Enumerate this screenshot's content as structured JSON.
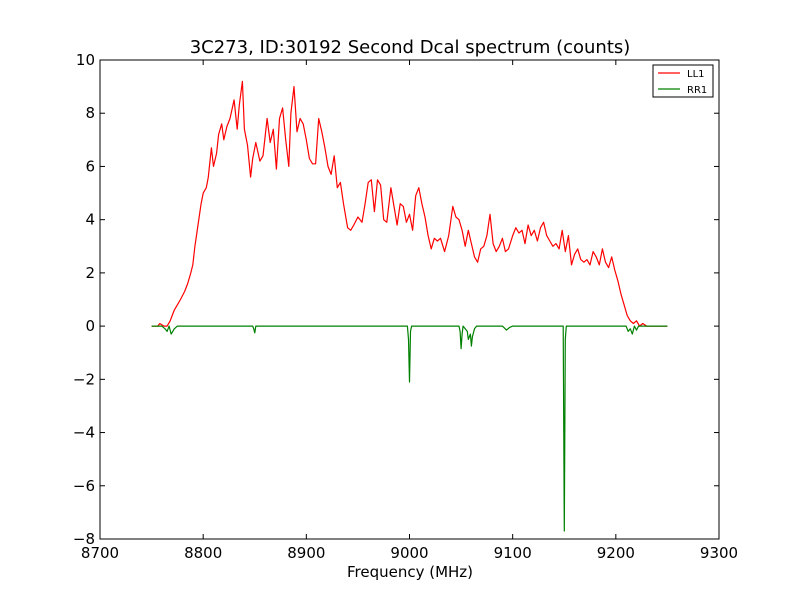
{
  "chart_data": {
    "type": "line",
    "title": "3C273, ID:30192 Second Dcal spectrum (counts)",
    "xlabel": "Frequency (MHz)",
    "ylabel": "",
    "xlim": [
      8700,
      9300
    ],
    "ylim": [
      -8,
      10
    ],
    "xticks": [
      8700,
      8800,
      8900,
      9000,
      9100,
      9200,
      9300
    ],
    "yticks": [
      -8,
      -6,
      -4,
      -2,
      0,
      2,
      4,
      6,
      8,
      10
    ],
    "xtick_labels": [
      "8700",
      "8800",
      "8900",
      "9000",
      "9100",
      "9200",
      "9300"
    ],
    "ytick_labels": [
      "−8",
      "−6",
      "−4",
      "−2",
      "0",
      "2",
      "4",
      "6",
      "8",
      "10"
    ],
    "grid": false,
    "legend_position": "top-right",
    "series": [
      {
        "name": "LL1",
        "color": "#ff0000",
        "x": [
          8750,
          8756,
          8758,
          8762,
          8765,
          8768,
          8770,
          8772,
          8775,
          8778,
          8782,
          8785,
          8788,
          8790,
          8792,
          8795,
          8798,
          8800,
          8803,
          8805,
          8808,
          8810,
          8813,
          8815,
          8818,
          8820,
          8823,
          8826,
          8830,
          8833,
          8835,
          8838,
          8840,
          8843,
          8846,
          8848,
          8851,
          8855,
          8858,
          8862,
          8865,
          8868,
          8871,
          8874,
          8877,
          8880,
          8883,
          8885,
          8888,
          8891,
          8894,
          8897,
          8900,
          8903,
          8906,
          8909,
          8912,
          8915,
          8918,
          8921,
          8924,
          8927,
          8930,
          8933,
          8936,
          8940,
          8943,
          8946,
          8950,
          8954,
          8957,
          8960,
          8963,
          8966,
          8969,
          8972,
          8975,
          8978,
          8982,
          8985,
          8988,
          8991,
          8994,
          8997,
          9000,
          9003,
          9006,
          9009,
          9012,
          9015,
          9018,
          9021,
          9024,
          9027,
          9030,
          9034,
          9038,
          9042,
          9045,
          9048,
          9051,
          9054,
          9057,
          9060,
          9063,
          9066,
          9069,
          9072,
          9075,
          9078,
          9081,
          9084,
          9087,
          9090,
          9093,
          9096,
          9100,
          9103,
          9106,
          9109,
          9112,
          9115,
          9118,
          9121,
          9124,
          9127,
          9130,
          9133,
          9136,
          9139,
          9142,
          9145,
          9148,
          9151,
          9154,
          9157,
          9160,
          9163,
          9166,
          9169,
          9172,
          9175,
          9178,
          9181,
          9184,
          9187,
          9190,
          9193,
          9196,
          9199,
          9202,
          9205,
          9208,
          9211,
          9214,
          9217,
          9220,
          9223,
          9226,
          9230,
          9240,
          9250
        ],
        "y": [
          0.0,
          0.0,
          0.1,
          0.0,
          0.0,
          0.2,
          0.4,
          0.6,
          0.8,
          1.0,
          1.3,
          1.6,
          2.0,
          2.3,
          3.0,
          3.8,
          4.6,
          5.0,
          5.2,
          5.6,
          6.7,
          6.0,
          6.5,
          7.2,
          7.6,
          7.0,
          7.5,
          7.8,
          8.5,
          7.4,
          8.3,
          9.2,
          7.4,
          6.8,
          5.6,
          6.3,
          6.9,
          6.2,
          6.4,
          7.8,
          6.9,
          7.4,
          5.9,
          7.8,
          8.2,
          7.0,
          6.0,
          8.0,
          9.0,
          7.3,
          7.8,
          7.6,
          7.0,
          6.3,
          6.1,
          6.1,
          7.8,
          7.3,
          6.7,
          6.0,
          5.7,
          6.4,
          5.2,
          5.4,
          4.6,
          3.7,
          3.6,
          3.8,
          4.1,
          3.9,
          4.6,
          5.4,
          5.5,
          4.3,
          5.5,
          5.3,
          4.0,
          3.9,
          5.2,
          4.5,
          3.8,
          4.6,
          4.5,
          3.9,
          4.2,
          3.6,
          4.9,
          5.2,
          4.6,
          4.1,
          3.4,
          2.9,
          3.3,
          3.2,
          3.3,
          2.8,
          3.4,
          4.5,
          4.1,
          4.0,
          3.6,
          3.0,
          3.6,
          3.1,
          2.6,
          2.4,
          2.9,
          3.0,
          3.4,
          4.2,
          3.1,
          2.8,
          3.0,
          3.3,
          2.8,
          2.9,
          3.4,
          3.7,
          3.5,
          3.6,
          3.1,
          3.8,
          3.4,
          3.6,
          3.2,
          3.7,
          3.9,
          3.4,
          3.2,
          3.0,
          3.1,
          2.9,
          3.6,
          2.8,
          3.4,
          2.3,
          2.7,
          2.9,
          2.5,
          2.4,
          2.5,
          2.3,
          2.8,
          2.6,
          2.3,
          2.9,
          2.4,
          2.2,
          2.6,
          2.1,
          1.7,
          1.2,
          0.8,
          0.4,
          0.2,
          0.1,
          0.2,
          0.0,
          0.1,
          0.0,
          0.0,
          0.0
        ]
      },
      {
        "name": "RR1",
        "color": "#008000",
        "x": [
          8750,
          8760,
          8763,
          8765,
          8767,
          8769,
          8772,
          8775,
          8800,
          8848,
          8849,
          8850,
          8851,
          8900,
          8998,
          8999,
          9000,
          9001,
          9002,
          9048,
          9049,
          9050,
          9051,
          9052,
          9054,
          9056,
          9057,
          9059,
          9060,
          9061,
          9063,
          9065,
          9070,
          9090,
          9094,
          9097,
          9100,
          9149,
          9150,
          9151,
          9152,
          9200,
          9210,
          9212,
          9214,
          9216,
          9218,
          9220,
          9222,
          9250
        ],
        "y": [
          0.0,
          0.0,
          -0.1,
          -0.2,
          0.0,
          -0.3,
          -0.1,
          0.0,
          0.0,
          0.0,
          -0.1,
          -0.25,
          0.0,
          0.0,
          0.0,
          -0.5,
          -2.1,
          -0.2,
          0.0,
          0.0,
          -0.2,
          -0.85,
          -0.3,
          0.0,
          -0.1,
          -0.2,
          -0.5,
          -0.3,
          -0.75,
          -0.4,
          -0.1,
          0.0,
          0.0,
          0.0,
          -0.15,
          -0.05,
          0.0,
          0.0,
          -7.7,
          -0.5,
          0.0,
          0.0,
          0.0,
          -0.2,
          -0.1,
          -0.3,
          0.0,
          -0.15,
          0.0,
          0.0
        ]
      }
    ]
  }
}
